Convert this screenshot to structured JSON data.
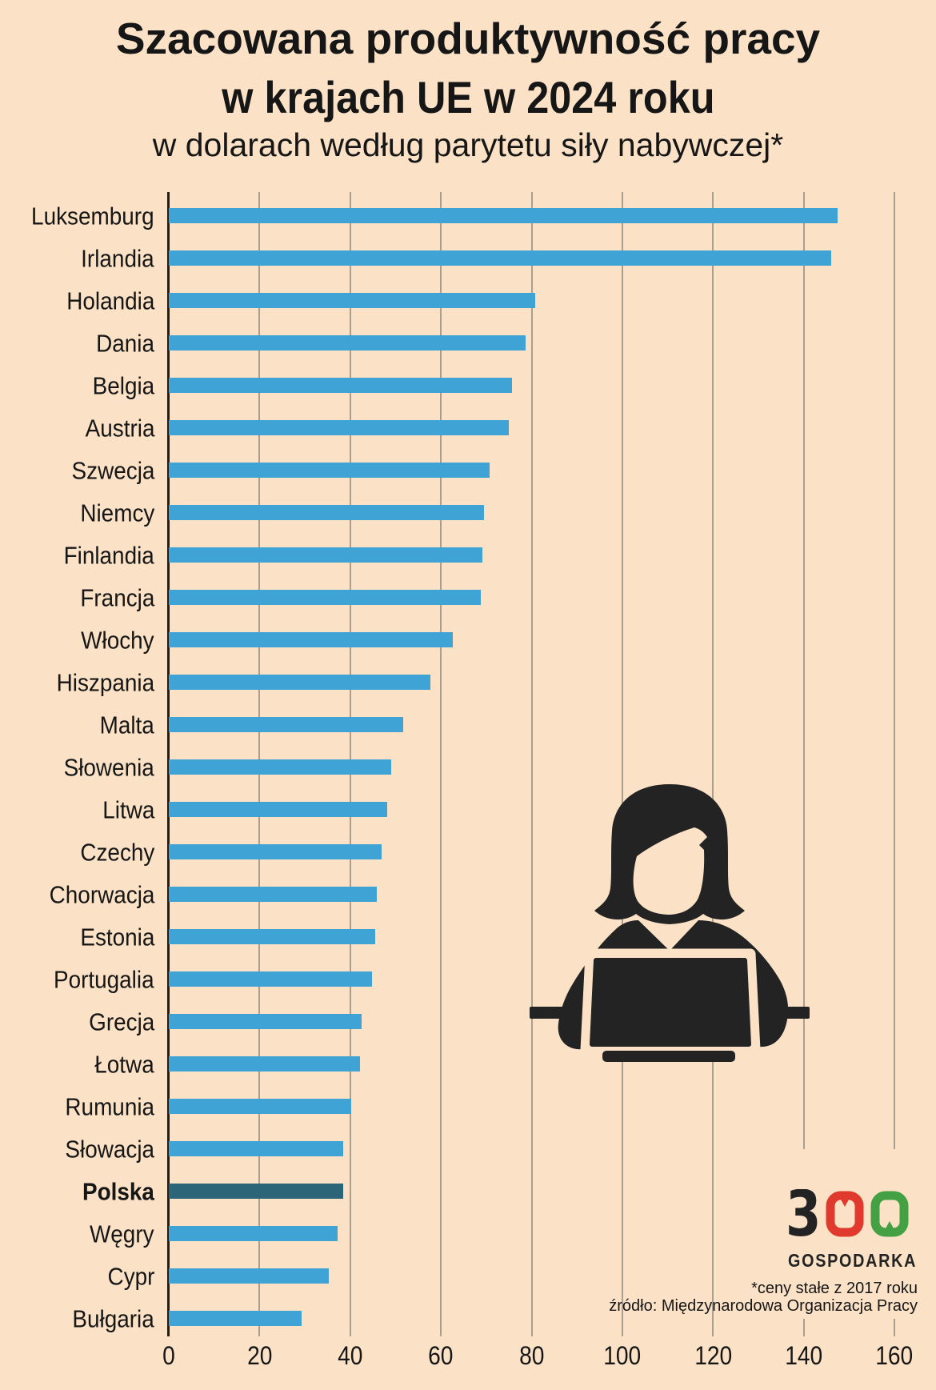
{
  "page": {
    "background": "#FBE2C6"
  },
  "title": {
    "line1": "Szacowana produktywność pracy",
    "line2": "w krajach UE w 2024 roku",
    "subtitle": "w dolarach według parytetu siły nabywczej*"
  },
  "chart_data": {
    "type": "bar",
    "orientation": "horizontal",
    "categories": [
      "Luksemburg",
      "Irlandia",
      "Holandia",
      "Dania",
      "Belgia",
      "Austria",
      "Szwecja",
      "Niemcy",
      "Finlandia",
      "Francja",
      "Włochy",
      "Hiszpania",
      "Malta",
      "Słowenia",
      "Litwa",
      "Czechy",
      "Chorwacja",
      "Estonia",
      "Portugalia",
      "Grecja",
      "Łotwa",
      "Rumunia",
      "Słowacja",
      "Polska",
      "Węgry",
      "Cypr",
      "Bułgaria"
    ],
    "values": [
      147.5,
      146,
      80.8,
      78.7,
      75.6,
      75,
      70.7,
      69.5,
      69.2,
      68.8,
      62.6,
      57.6,
      51.7,
      49,
      48.2,
      47,
      45.9,
      45.5,
      44.8,
      42.5,
      42.2,
      40.3,
      38.5,
      38.4,
      37.3,
      35.2,
      29.2
    ],
    "highlight_country": "Polska",
    "bar_color": "#3FA3D6",
    "highlight_color": "#2B6577",
    "xlim": [
      0,
      160
    ],
    "xticks": [
      0,
      20,
      40,
      60,
      80,
      100,
      120,
      140,
      160
    ],
    "grid": true
  },
  "icon": {
    "name": "woman-at-laptop"
  },
  "logo": {
    "number": "300",
    "name": "GOSPODARKA",
    "dark": "#232323",
    "red": "#E03A2E",
    "green": "#43A143"
  },
  "footnotes": {
    "line1": "*ceny stałe z 2017 roku",
    "line2": "źródło: Międzynarodowa Organizacja Pracy"
  }
}
